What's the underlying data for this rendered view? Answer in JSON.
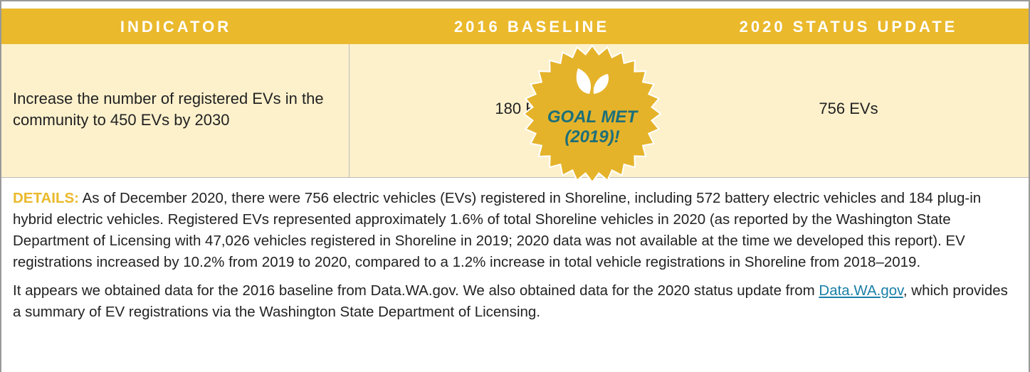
{
  "header": {
    "columns": [
      "INDICATOR",
      "2016 BASELINE",
      "2020 STATUS UPDATE"
    ]
  },
  "row": {
    "indicator": "Increase the number of registered EVs in the community to 450 EVs by 2030",
    "baseline": "180 EVs",
    "status": "756 EVs",
    "badge": [
      "GOAL MET",
      "(2019)!"
    ]
  },
  "details": {
    "label": "DETAILS:",
    "text": "As of December 2020, there were 756 electric vehicles (EVs) registered in Shoreline, including 572 battery electric vehicles and 184 plug-in hybrid electric vehicles. Registered EVs represented approximately 1.6% of total Shoreline vehicles in 2020 (as reported by the Washington State Department of Licensing with 47,026 vehicles registered in Shoreline in 2019; 2020 data was not available at the time we developed this report). EV registrations increased by 10.2% from 2019 to 2020, compared to a 1.2% increase in total vehicle registrations in Shoreline from 2018–2019.",
    "source_before": "It appears we obtained data for the 2016 baseline from Data.WA.gov. We also obtained data for the 2020 status update from",
    "source_link": "Data.WA.gov",
    "source_after": ", which provides a summary of EV registrations via the Washington State Department of Licensing."
  }
}
